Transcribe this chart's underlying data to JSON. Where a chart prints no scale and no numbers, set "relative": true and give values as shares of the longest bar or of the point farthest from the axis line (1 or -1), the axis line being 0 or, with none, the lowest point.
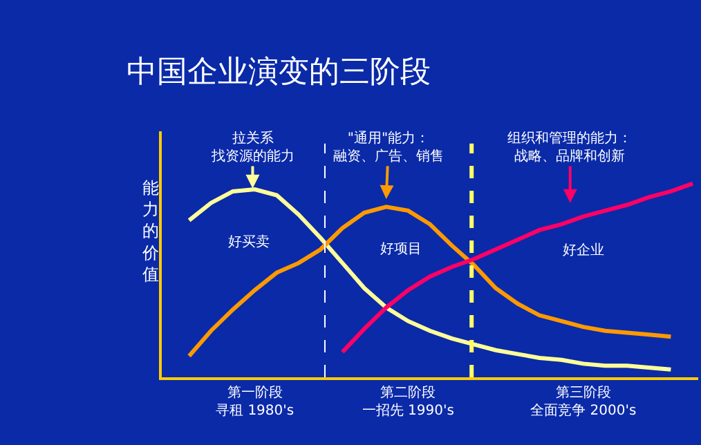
{
  "chart_data": {
    "type": "line",
    "title": "中国企业演变的三阶段",
    "ylabel": "能力的价值",
    "relative": true,
    "grid": false,
    "marker": "none",
    "line_style": "solid",
    "categories": [
      null,
      null,
      null,
      null,
      "第一阶段寻租 1980's",
      null,
      null,
      null,
      null,
      null,
      null,
      "第二阶段一招先 1990's",
      null,
      null,
      null,
      null,
      null,
      null,
      null,
      "第三阶段全面竞争 2000's",
      null,
      null,
      null,
      null,
      null
    ],
    "series": [
      {
        "color": "#ffff99",
        "values": [
          null,
          0.81,
          0.9,
          0.96,
          0.97,
          0.94,
          0.84,
          0.72,
          0.59,
          0.46,
          0.36,
          0.29,
          0.24,
          0.2,
          0.17,
          0.14,
          0.12,
          0.1,
          0.09,
          0.07,
          0.06,
          0.06,
          0.05,
          0.04,
          null
        ]
      },
      {
        "color": "#ff9900",
        "values": [
          null,
          0.11,
          0.24,
          0.35,
          0.45,
          0.54,
          0.59,
          0.66,
          0.77,
          0.85,
          0.88,
          0.86,
          0.79,
          0.68,
          0.58,
          0.46,
          0.38,
          0.32,
          0.29,
          0.26,
          0.24,
          0.23,
          0.22,
          0.21,
          null
        ]
      },
      {
        "color": "#ff0066",
        "values": [
          null,
          null,
          null,
          null,
          null,
          null,
          null,
          null,
          0.13,
          0.25,
          0.36,
          0.45,
          0.52,
          0.57,
          0.61,
          0.66,
          0.71,
          0.76,
          0.79,
          0.83,
          0.86,
          0.89,
          0.93,
          0.96,
          1
        ]
      }
    ],
    "annotations": [
      "拉关系找资源的能力",
      "\"通用\"能力：融资、广告、销售",
      "组织和管理的能力：战略、品牌和创新",
      "好买卖",
      "好项目",
      "好企业"
    ]
  }
}
